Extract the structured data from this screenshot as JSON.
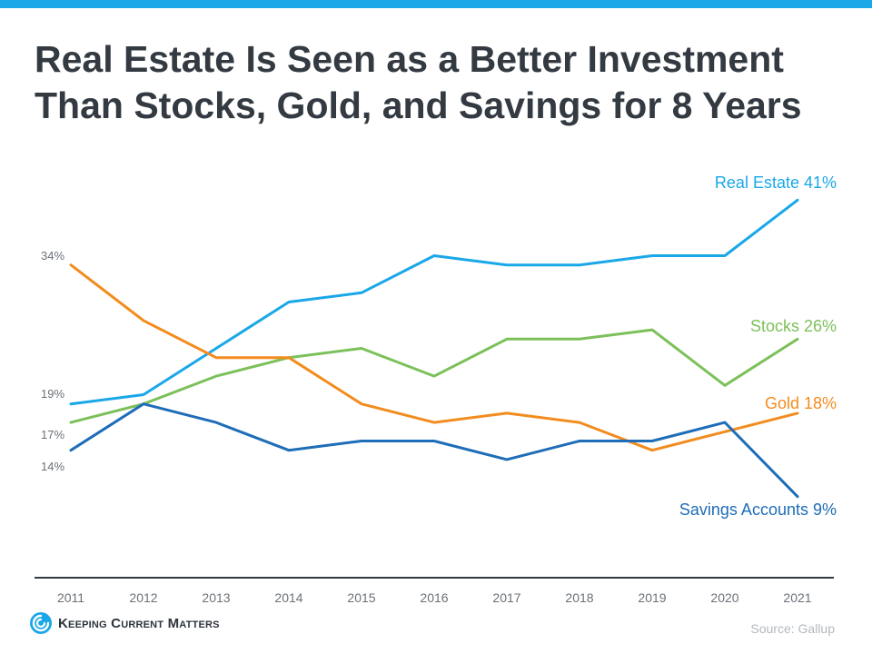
{
  "header": {
    "title_line1": "Real Estate Is Seen as a Better Investment",
    "title_line2": "Than Stocks, Gold, and Savings for 8 Years"
  },
  "chart_data": {
    "type": "line",
    "title": "Real Estate Is Seen as a Better Investment Than Stocks, Gold, and Savings for 8 Years",
    "xlabel": "",
    "ylabel": "",
    "ylim": [
      0,
      45
    ],
    "grid": false,
    "x": [
      "2011",
      "2012",
      "2013",
      "2014",
      "2015",
      "2016",
      "2017",
      "2018",
      "2019",
      "2020",
      "2021"
    ],
    "series": [
      {
        "name": "Real Estate",
        "end_label": "Real Estate 41%",
        "color": "#1aa7e8",
        "values": [
          19,
          20,
          25,
          30,
          31,
          35,
          34,
          34,
          35,
          35,
          41
        ]
      },
      {
        "name": "Stocks",
        "end_label": "Stocks 26%",
        "color": "#7cc05a",
        "values": [
          17,
          19,
          22,
          24,
          25,
          22,
          26,
          26,
          27,
          21,
          26
        ]
      },
      {
        "name": "Gold",
        "end_label": "Gold 18%",
        "color": "#f28c1e",
        "values": [
          34,
          28,
          24,
          24,
          19,
          17,
          18,
          17,
          14,
          16,
          18
        ]
      },
      {
        "name": "Savings Accounts",
        "end_label": "Savings Accounts 9%",
        "color": "#1e6db8",
        "values": [
          14,
          19,
          17,
          14,
          15,
          15,
          13,
          15,
          15,
          17,
          9
        ]
      }
    ],
    "start_labels": [
      "34%",
      "19%",
      "17%",
      "14%"
    ]
  },
  "footer": {
    "logo_text": "Keeping Current Matters",
    "source": "Source: Gallup"
  },
  "colors": {
    "accent_bar": "#1aa7e8",
    "title": "#333a41",
    "axis": "#333a41",
    "tick": "#6b7178",
    "start_label": "#6b7178"
  }
}
